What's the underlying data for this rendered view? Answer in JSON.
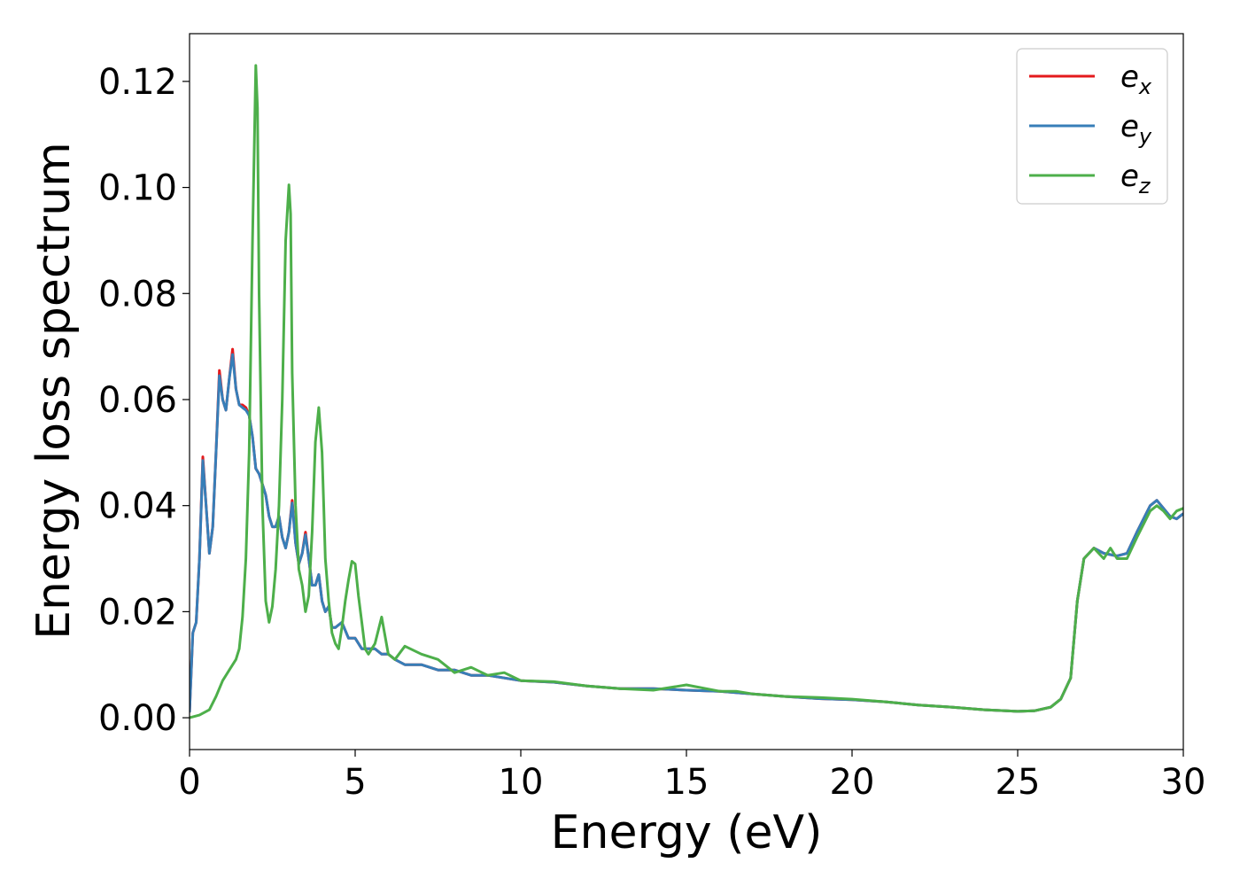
{
  "chart_data": {
    "type": "line",
    "title": "",
    "xlabel": "Energy (eV)",
    "ylabel": "Energy loss spectrum",
    "xlim": [
      0,
      30
    ],
    "ylim": [
      -0.006,
      0.129
    ],
    "xticks": [
      0,
      5,
      10,
      15,
      20,
      25,
      30
    ],
    "xtick_labels": [
      "0",
      "5",
      "10",
      "15",
      "20",
      "25",
      "30"
    ],
    "yticks": [
      0.0,
      0.02,
      0.04,
      0.06,
      0.08,
      0.1,
      0.12
    ],
    "ytick_labels": [
      "0.00",
      "0.02",
      "0.04",
      "0.06",
      "0.08",
      "0.10",
      "0.12"
    ],
    "grid": false,
    "legend_position": "top-right",
    "series": [
      {
        "name": "e_x",
        "legend_base": "e",
        "legend_sub": "x",
        "color": "#e41a1c",
        "x": [
          0,
          0.1,
          0.2,
          0.3,
          0.4,
          0.5,
          0.6,
          0.7,
          0.8,
          0.9,
          1.0,
          1.1,
          1.2,
          1.3,
          1.4,
          1.5,
          1.6,
          1.7,
          1.8,
          1.9,
          2.0,
          2.1,
          2.2,
          2.3,
          2.4,
          2.5,
          2.6,
          2.7,
          2.8,
          2.9,
          3.0,
          3.1,
          3.2,
          3.3,
          3.4,
          3.5,
          3.6,
          3.7,
          3.8,
          3.9,
          4.0,
          4.1,
          4.2,
          4.3,
          4.4,
          4.6,
          4.8,
          5.0,
          5.2,
          5.4,
          5.6,
          5.8,
          6.0,
          6.2,
          6.5,
          7.0,
          7.5,
          8.0,
          8.5,
          9.0,
          9.5,
          10.0,
          11.0,
          12.0,
          13.0,
          14.0,
          15.0,
          16.0,
          17.0,
          18.0,
          19.0,
          20.0,
          21.0,
          22.0,
          23.0,
          24.0,
          25.0,
          25.5,
          26.0,
          26.3,
          26.6,
          26.8,
          27.0,
          27.3,
          27.6,
          28.0,
          28.3,
          28.6,
          29.0,
          29.2,
          29.4,
          29.6,
          29.8,
          30.0
        ],
        "y": [
          0.001,
          0.016,
          0.018,
          0.03,
          0.0492,
          0.04,
          0.031,
          0.036,
          0.05,
          0.0655,
          0.06,
          0.058,
          0.064,
          0.0695,
          0.062,
          0.059,
          0.059,
          0.0585,
          0.057,
          0.053,
          0.047,
          0.046,
          0.044,
          0.042,
          0.038,
          0.036,
          0.036,
          0.038,
          0.034,
          0.032,
          0.035,
          0.041,
          0.033,
          0.029,
          0.031,
          0.035,
          0.03,
          0.025,
          0.025,
          0.027,
          0.022,
          0.02,
          0.021,
          0.017,
          0.017,
          0.018,
          0.015,
          0.015,
          0.013,
          0.013,
          0.013,
          0.012,
          0.012,
          0.011,
          0.01,
          0.01,
          0.009,
          0.009,
          0.008,
          0.008,
          0.0075,
          0.007,
          0.0067,
          0.006,
          0.0055,
          0.0055,
          0.0052,
          0.005,
          0.0045,
          0.004,
          0.0036,
          0.0034,
          0.003,
          0.0024,
          0.002,
          0.0015,
          0.0012,
          0.0013,
          0.002,
          0.0035,
          0.0075,
          0.022,
          0.03,
          0.032,
          0.031,
          0.0305,
          0.031,
          0.035,
          0.04,
          0.041,
          0.0395,
          0.038,
          0.0375,
          0.0385
        ]
      },
      {
        "name": "e_y",
        "legend_base": "e",
        "legend_sub": "y",
        "color": "#377eb8",
        "x": [
          0,
          0.1,
          0.2,
          0.3,
          0.4,
          0.5,
          0.6,
          0.7,
          0.8,
          0.9,
          1.0,
          1.1,
          1.2,
          1.3,
          1.4,
          1.5,
          1.6,
          1.7,
          1.8,
          1.9,
          2.0,
          2.1,
          2.2,
          2.3,
          2.4,
          2.5,
          2.6,
          2.7,
          2.8,
          2.9,
          3.0,
          3.1,
          3.2,
          3.3,
          3.4,
          3.5,
          3.6,
          3.7,
          3.8,
          3.9,
          4.0,
          4.1,
          4.2,
          4.3,
          4.4,
          4.6,
          4.8,
          5.0,
          5.2,
          5.4,
          5.6,
          5.8,
          6.0,
          6.2,
          6.5,
          7.0,
          7.5,
          8.0,
          8.5,
          9.0,
          9.5,
          10.0,
          11.0,
          12.0,
          13.0,
          14.0,
          15.0,
          16.0,
          17.0,
          18.0,
          19.0,
          20.0,
          21.0,
          22.0,
          23.0,
          24.0,
          25.0,
          25.5,
          26.0,
          26.3,
          26.6,
          26.8,
          27.0,
          27.3,
          27.6,
          28.0,
          28.3,
          28.6,
          29.0,
          29.2,
          29.4,
          29.6,
          29.8,
          30.0
        ],
        "y": [
          0.001,
          0.016,
          0.018,
          0.03,
          0.0485,
          0.04,
          0.031,
          0.036,
          0.05,
          0.0645,
          0.06,
          0.058,
          0.064,
          0.0685,
          0.062,
          0.059,
          0.0585,
          0.058,
          0.057,
          0.053,
          0.047,
          0.046,
          0.044,
          0.042,
          0.038,
          0.036,
          0.036,
          0.038,
          0.034,
          0.032,
          0.035,
          0.0405,
          0.033,
          0.029,
          0.031,
          0.0345,
          0.03,
          0.025,
          0.025,
          0.027,
          0.022,
          0.02,
          0.021,
          0.017,
          0.017,
          0.018,
          0.015,
          0.015,
          0.013,
          0.013,
          0.013,
          0.012,
          0.012,
          0.011,
          0.01,
          0.01,
          0.009,
          0.009,
          0.008,
          0.008,
          0.0075,
          0.007,
          0.0067,
          0.006,
          0.0055,
          0.0055,
          0.0052,
          0.005,
          0.0045,
          0.004,
          0.0036,
          0.0034,
          0.003,
          0.0024,
          0.002,
          0.0015,
          0.0012,
          0.0013,
          0.002,
          0.0035,
          0.0075,
          0.022,
          0.03,
          0.032,
          0.031,
          0.0305,
          0.031,
          0.035,
          0.04,
          0.041,
          0.0395,
          0.038,
          0.0375,
          0.0385
        ]
      },
      {
        "name": "e_z",
        "legend_base": "e",
        "legend_sub": "z",
        "color": "#4daf4a",
        "x": [
          0,
          0.3,
          0.6,
          0.8,
          1.0,
          1.2,
          1.4,
          1.5,
          1.6,
          1.7,
          1.8,
          1.9,
          2.0,
          2.05,
          2.1,
          2.2,
          2.3,
          2.4,
          2.5,
          2.6,
          2.7,
          2.8,
          2.9,
          3.0,
          3.05,
          3.1,
          3.2,
          3.3,
          3.4,
          3.5,
          3.6,
          3.7,
          3.8,
          3.9,
          4.0,
          4.05,
          4.1,
          4.2,
          4.3,
          4.4,
          4.5,
          4.6,
          4.7,
          4.8,
          4.9,
          5.0,
          5.1,
          5.2,
          5.3,
          5.4,
          5.6,
          5.8,
          6.0,
          6.2,
          6.5,
          7.0,
          7.5,
          8.0,
          8.5,
          9.0,
          9.5,
          10.0,
          11.0,
          12.0,
          13.0,
          14.0,
          15.0,
          16.0,
          16.5,
          17.0,
          18.0,
          19.0,
          20.0,
          21.0,
          22.0,
          23.0,
          24.0,
          25.0,
          25.5,
          26.0,
          26.3,
          26.6,
          26.8,
          27.0,
          27.3,
          27.6,
          27.8,
          28.0,
          28.3,
          28.6,
          29.0,
          29.2,
          29.4,
          29.6,
          29.8,
          30.0
        ],
        "y": [
          0.0,
          0.0005,
          0.0015,
          0.004,
          0.007,
          0.009,
          0.011,
          0.013,
          0.019,
          0.03,
          0.05,
          0.09,
          0.123,
          0.115,
          0.08,
          0.04,
          0.022,
          0.018,
          0.021,
          0.028,
          0.04,
          0.06,
          0.09,
          0.1005,
          0.095,
          0.065,
          0.04,
          0.028,
          0.025,
          0.02,
          0.023,
          0.035,
          0.052,
          0.0585,
          0.05,
          0.04,
          0.03,
          0.022,
          0.016,
          0.014,
          0.013,
          0.017,
          0.022,
          0.026,
          0.0295,
          0.029,
          0.023,
          0.018,
          0.013,
          0.012,
          0.014,
          0.019,
          0.012,
          0.011,
          0.0135,
          0.012,
          0.011,
          0.0085,
          0.0095,
          0.008,
          0.0085,
          0.007,
          0.0068,
          0.006,
          0.0055,
          0.0052,
          0.0062,
          0.005,
          0.005,
          0.0045,
          0.004,
          0.0038,
          0.0035,
          0.003,
          0.0024,
          0.002,
          0.0015,
          0.0012,
          0.0013,
          0.002,
          0.0035,
          0.0075,
          0.022,
          0.03,
          0.032,
          0.03,
          0.032,
          0.03,
          0.03,
          0.034,
          0.039,
          0.04,
          0.039,
          0.0375,
          0.039,
          0.0395
        ]
      }
    ]
  }
}
